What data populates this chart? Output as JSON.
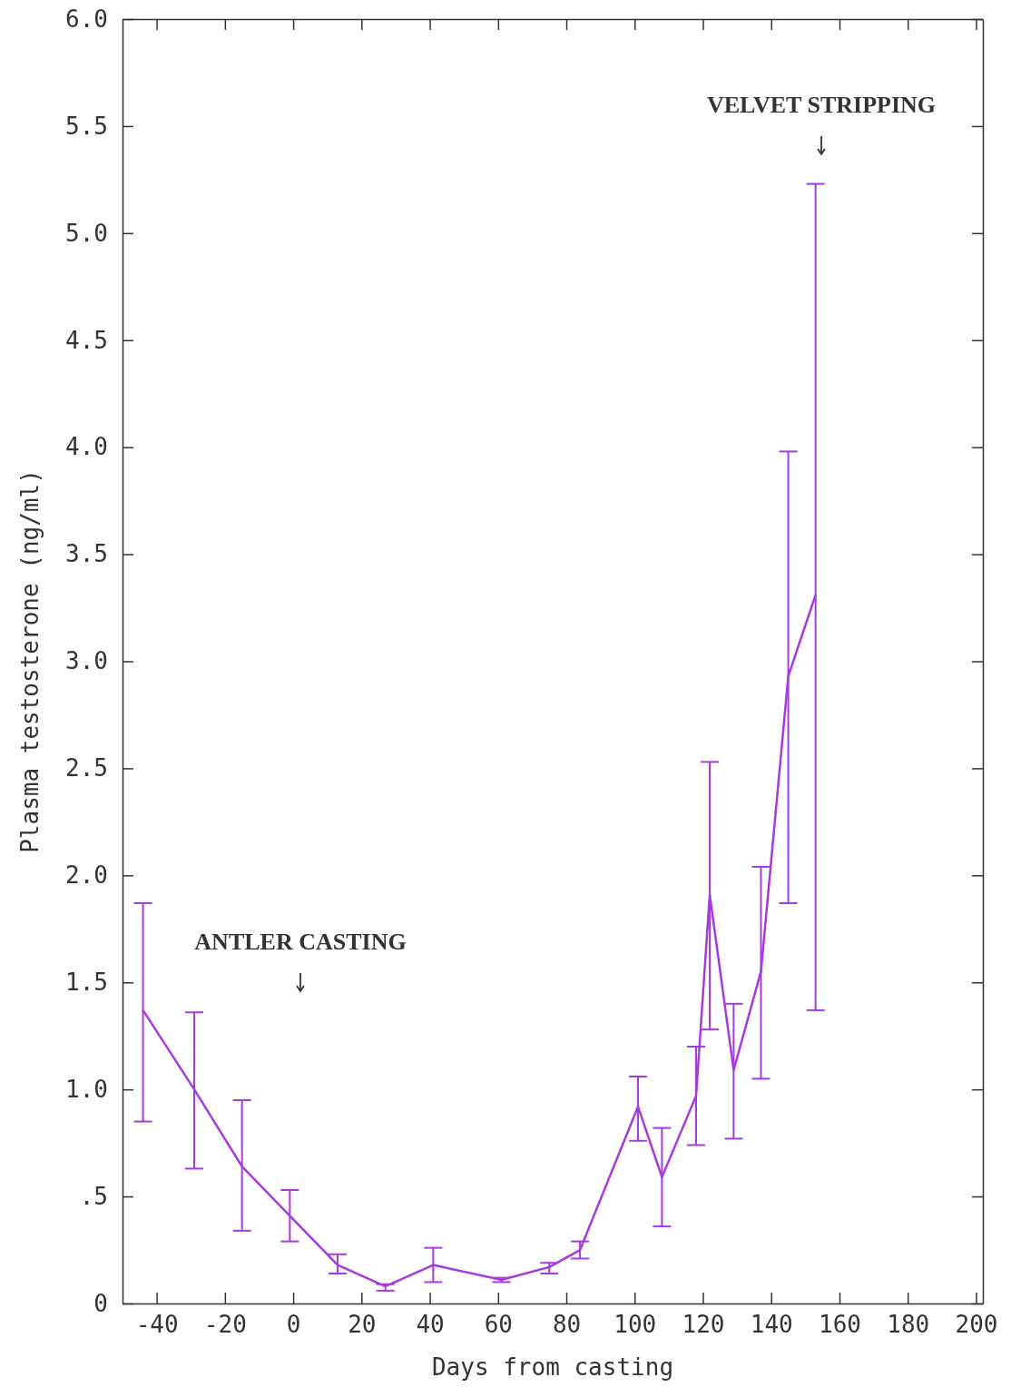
{
  "chart_data": {
    "type": "line",
    "xlabel": "Days from casting",
    "ylabel": "Plasma testosterone (ng/ml)",
    "x": [
      -44,
      -29,
      -15,
      -1,
      13,
      27,
      41,
      61,
      75,
      84,
      101,
      108,
      118,
      122,
      129,
      137,
      145,
      153
    ],
    "series": [
      {
        "color": "#a63adf",
        "values": [
          1.37,
          1.0,
          0.64,
          0.41,
          0.18,
          0.08,
          0.18,
          0.11,
          0.17,
          0.25,
          0.92,
          0.59,
          0.97,
          1.91,
          1.09,
          1.55,
          2.93,
          3.31
        ],
        "errors": [
          [
            0.85,
            1.87
          ],
          [
            0.63,
            1.36
          ],
          [
            0.34,
            0.95
          ],
          [
            0.29,
            0.53
          ],
          [
            0.14,
            0.23
          ],
          [
            0.06,
            0.09
          ],
          [
            0.1,
            0.26
          ],
          [
            0.1,
            0.12
          ],
          [
            0.14,
            0.19
          ],
          [
            0.21,
            0.29
          ],
          [
            0.76,
            1.06
          ],
          [
            0.36,
            0.82
          ],
          [
            0.74,
            1.2
          ],
          [
            1.28,
            2.53
          ],
          [
            0.77,
            1.4
          ],
          [
            1.05,
            2.04
          ],
          [
            1.87,
            3.98
          ],
          [
            1.37,
            5.23
          ]
        ]
      }
    ],
    "xlim": [
      -50,
      202
    ],
    "xticks": [
      -40,
      -20,
      0,
      20,
      40,
      60,
      80,
      100,
      120,
      140,
      160,
      180,
      200
    ],
    "ylim": [
      0,
      6
    ],
    "yticks": [
      0,
      {
        "value": 0.5,
        "label": ".5"
      },
      {
        "value": 1,
        "label": "1.0"
      },
      1.5,
      {
        "value": 2,
        "label": "2.0"
      },
      2.5,
      {
        "value": 3,
        "label": "3.0"
      },
      3.5,
      {
        "value": 4,
        "label": "4.0"
      },
      4.5,
      {
        "value": 5,
        "label": "5.0"
      },
      5.5,
      {
        "value": 6,
        "label": "6.0"
      }
    ],
    "annotations": [
      "ANTLER CASTING",
      "VELVET STRIPPING"
    ],
    "marker": "none",
    "line_style": "solid",
    "grid": false
  }
}
